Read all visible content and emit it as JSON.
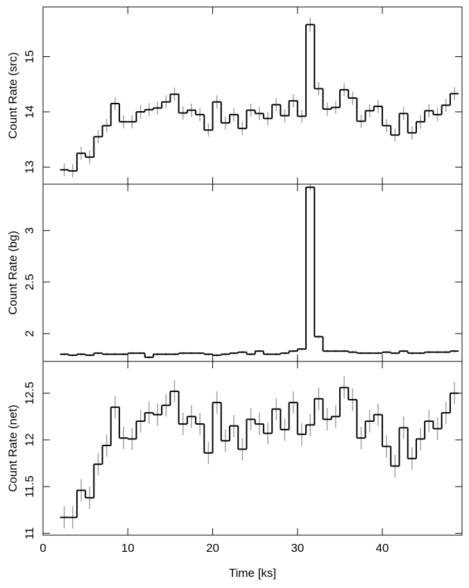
{
  "chart_data": [
    {
      "type": "step",
      "ylabel": "Count Rate (src)",
      "xlim": [
        0,
        49.4
      ],
      "ylim": [
        12.69,
        15.9
      ],
      "yticks": [
        13,
        14,
        15
      ],
      "x": [
        2.5,
        3.5,
        4.5,
        5.5,
        6.5,
        7.5,
        8.5,
        9.5,
        10.5,
        11.5,
        12.5,
        13.5,
        14.5,
        15.5,
        16.5,
        17.5,
        18.5,
        19.5,
        20.5,
        21.5,
        22.5,
        23.5,
        24.5,
        25.5,
        26.5,
        27.5,
        28.5,
        29.5,
        30.5,
        31.5,
        32.5,
        33.5,
        34.5,
        35.5,
        36.5,
        37.5,
        38.5,
        39.5,
        40.5,
        41.5,
        42.5,
        43.5,
        44.5,
        45.5,
        46.5,
        47.5,
        48.5
      ],
      "values": [
        12.95,
        12.93,
        13.25,
        13.18,
        13.55,
        13.75,
        14.15,
        13.82,
        13.82,
        14.0,
        14.04,
        14.07,
        14.18,
        14.32,
        13.98,
        14.03,
        13.95,
        13.67,
        14.18,
        13.8,
        13.95,
        13.7,
        14.03,
        13.97,
        13.88,
        14.13,
        13.93,
        14.2,
        13.92,
        15.58,
        14.42,
        14.05,
        14.08,
        14.4,
        14.25,
        13.83,
        14.02,
        14.1,
        13.75,
        13.58,
        13.97,
        13.62,
        13.82,
        14.02,
        13.95,
        14.12,
        14.33
      ],
      "errors": [
        0.12,
        0.12,
        0.12,
        0.12,
        0.12,
        0.12,
        0.12,
        0.12,
        0.12,
        0.12,
        0.12,
        0.12,
        0.12,
        0.12,
        0.12,
        0.12,
        0.12,
        0.12,
        0.12,
        0.12,
        0.12,
        0.12,
        0.12,
        0.12,
        0.12,
        0.12,
        0.12,
        0.12,
        0.12,
        0.13,
        0.12,
        0.12,
        0.12,
        0.12,
        0.12,
        0.12,
        0.12,
        0.12,
        0.12,
        0.12,
        0.12,
        0.12,
        0.12,
        0.12,
        0.12,
        0.12,
        0.12
      ],
      "color": "#000000",
      "error_color": "#a0a0a0"
    },
    {
      "type": "step",
      "ylabel": "Count Rate (bg)",
      "xlim": [
        0,
        49.4
      ],
      "ylim": [
        1.73,
        3.45
      ],
      "yticks": [
        2,
        2.5,
        3
      ],
      "x": [
        2.5,
        3.5,
        4.5,
        5.5,
        6.5,
        7.5,
        8.5,
        9.5,
        10.5,
        11.5,
        12.5,
        13.5,
        14.5,
        15.5,
        16.5,
        17.5,
        18.5,
        19.5,
        20.5,
        21.5,
        22.5,
        23.5,
        24.5,
        25.5,
        26.5,
        27.5,
        28.5,
        29.5,
        30.5,
        31.5,
        32.5,
        33.5,
        34.5,
        35.5,
        36.5,
        37.5,
        38.5,
        39.5,
        40.5,
        41.5,
        42.5,
        43.5,
        44.5,
        45.5,
        46.5,
        47.5,
        48.5
      ],
      "values": [
        1.8,
        1.79,
        1.8,
        1.79,
        1.81,
        1.8,
        1.8,
        1.8,
        1.81,
        1.81,
        1.77,
        1.8,
        1.8,
        1.8,
        1.81,
        1.81,
        1.81,
        1.8,
        1.79,
        1.8,
        1.81,
        1.82,
        1.8,
        1.83,
        1.8,
        1.8,
        1.81,
        1.83,
        1.85,
        3.42,
        1.97,
        1.83,
        1.83,
        1.83,
        1.82,
        1.81,
        1.81,
        1.81,
        1.82,
        1.81,
        1.83,
        1.81,
        1.81,
        1.82,
        1.82,
        1.82,
        1.83
      ],
      "errors": [
        0.012,
        0.012,
        0.012,
        0.012,
        0.012,
        0.012,
        0.012,
        0.012,
        0.012,
        0.012,
        0.012,
        0.012,
        0.012,
        0.012,
        0.012,
        0.012,
        0.012,
        0.012,
        0.012,
        0.012,
        0.012,
        0.012,
        0.012,
        0.012,
        0.012,
        0.012,
        0.012,
        0.012,
        0.012,
        0.03,
        0.015,
        0.012,
        0.012,
        0.012,
        0.012,
        0.012,
        0.012,
        0.012,
        0.012,
        0.012,
        0.012,
        0.012,
        0.012,
        0.012,
        0.012,
        0.012,
        0.012
      ],
      "color": "#000000",
      "error_color": "#a0a0a0"
    },
    {
      "type": "step",
      "ylabel": "Count Rate (net)",
      "xlabel": "Time [ks]",
      "xlim": [
        0,
        49.4
      ],
      "xticks": [
        0,
        10,
        20,
        30,
        40
      ],
      "ylim": [
        10.98,
        12.84
      ],
      "yticks": [
        11,
        {
          "value": 11.5,
          "label": "11.5"
        },
        12,
        {
          "value": 12.5,
          "label": "12.5"
        }
      ],
      "x": [
        2.5,
        3.5,
        4.5,
        5.5,
        6.5,
        7.5,
        8.5,
        9.5,
        10.5,
        11.5,
        12.5,
        13.5,
        14.5,
        15.5,
        16.5,
        17.5,
        18.5,
        19.5,
        20.5,
        21.5,
        22.5,
        23.5,
        24.5,
        25.5,
        26.5,
        27.5,
        28.5,
        29.5,
        30.5,
        31.5,
        32.5,
        33.5,
        34.5,
        35.5,
        36.5,
        37.5,
        38.5,
        39.5,
        40.5,
        41.5,
        42.5,
        43.5,
        44.5,
        45.5,
        46.5,
        47.5,
        48.5
      ],
      "values": [
        11.17,
        11.17,
        11.46,
        11.38,
        11.74,
        11.94,
        12.35,
        12.02,
        12.01,
        12.2,
        12.29,
        12.27,
        12.37,
        12.52,
        12.17,
        12.25,
        12.17,
        11.86,
        12.4,
        11.99,
        12.15,
        11.9,
        12.22,
        12.17,
        12.07,
        12.33,
        12.11,
        12.4,
        12.06,
        12.16,
        12.44,
        12.22,
        12.25,
        12.56,
        12.43,
        12.02,
        12.2,
        12.27,
        11.93,
        11.72,
        12.13,
        11.8,
        12.01,
        12.2,
        12.12,
        12.29,
        12.5
      ],
      "errors": [
        0.12,
        0.12,
        0.12,
        0.12,
        0.12,
        0.12,
        0.12,
        0.12,
        0.12,
        0.12,
        0.12,
        0.12,
        0.12,
        0.12,
        0.12,
        0.12,
        0.12,
        0.12,
        0.12,
        0.12,
        0.12,
        0.12,
        0.12,
        0.12,
        0.12,
        0.12,
        0.12,
        0.12,
        0.12,
        0.12,
        0.12,
        0.12,
        0.12,
        0.12,
        0.12,
        0.12,
        0.12,
        0.12,
        0.12,
        0.12,
        0.12,
        0.12,
        0.12,
        0.12,
        0.12,
        0.12,
        0.12
      ],
      "color": "#000000",
      "error_color": "#a0a0a0"
    }
  ]
}
